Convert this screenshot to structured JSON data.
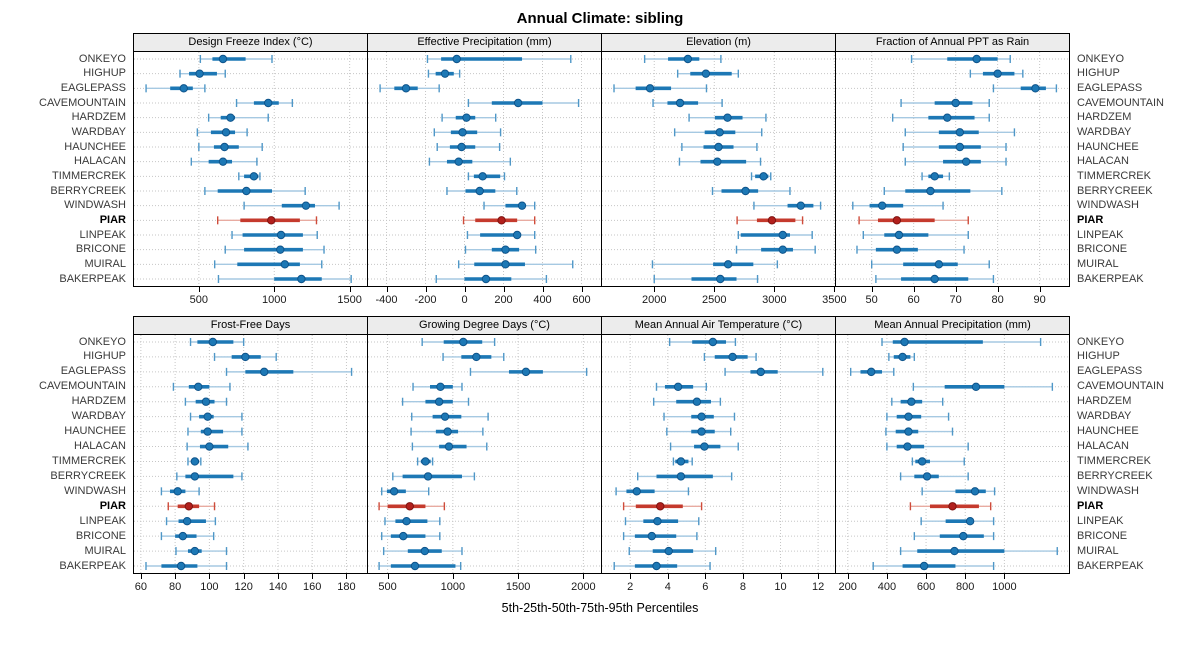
{
  "title": "Annual Climate: sibling",
  "caption": "5th-25th-50th-75th-95th Percentiles",
  "highlight_site": "PIAR",
  "sites": [
    "ONKEYO",
    "HIGHUP",
    "EAGLEPASS",
    "CAVEMOUNTAIN",
    "HARDZEM",
    "WARDBAY",
    "HAUNCHEE",
    "HALACAN",
    "TIMMERCREK",
    "BERRYCREEK",
    "WINDWASH",
    "PIAR",
    "LINPEAK",
    "BRICONE",
    "MUIRAL",
    "BAKERPEAK"
  ],
  "colors": {
    "normal": {
      "whisker": "#a6c9e2",
      "cap": "#4f97c7",
      "bar": "#1d78b5",
      "dot": "#1d78b5",
      "dot_edge": "#0e538a"
    },
    "highlight": {
      "whisker": "#e8aba1",
      "cap": "#cf4c3b",
      "bar": "#c53a2d",
      "dot": "#b2201d",
      "dot_edge": "#7e1310"
    },
    "grid": "#c6c6c6",
    "strip_bg": "#ececec",
    "border": "#000000"
  },
  "chart_data": {
    "type": "dotplot",
    "note": "5th-25th-50th-75th-95th percentile whisker plots per site; one panel per climate variable",
    "percentiles": [
      5,
      25,
      50,
      75,
      95
    ],
    "panels": [
      {
        "title": "Design Freeze Index (°C)",
        "xlim": [
          70,
          1615
        ],
        "ticks": [
          500,
          1000,
          1500
        ],
        "values": [
          [
            510,
            590,
            660,
            810,
            985
          ],
          [
            375,
            435,
            505,
            620,
            675
          ],
          [
            150,
            310,
            400,
            460,
            540
          ],
          [
            750,
            865,
            960,
            1030,
            1120
          ],
          [
            565,
            645,
            710,
            740,
            960
          ],
          [
            490,
            580,
            680,
            740,
            820
          ],
          [
            500,
            600,
            670,
            765,
            920
          ],
          [
            450,
            565,
            660,
            720,
            885
          ],
          [
            765,
            800,
            865,
            895,
            905
          ],
          [
            540,
            625,
            815,
            985,
            1205
          ],
          [
            800,
            1050,
            1210,
            1270,
            1430
          ],
          [
            625,
            775,
            980,
            1170,
            1280
          ],
          [
            720,
            790,
            1045,
            1190,
            1285
          ],
          [
            675,
            800,
            1040,
            1190,
            1330
          ],
          [
            605,
            755,
            1070,
            1170,
            1315
          ],
          [
            630,
            1000,
            1180,
            1315,
            1510
          ]
        ]
      },
      {
        "title": "Effective Precipitation (mm)",
        "xlim": [
          -495,
          700
        ],
        "ticks": [
          -400,
          -200,
          0,
          200,
          400,
          600
        ],
        "values": [
          [
            -190,
            -120,
            -40,
            295,
            545
          ],
          [
            -185,
            -148,
            -100,
            -55,
            -25
          ],
          [
            -433,
            -360,
            -300,
            -240,
            -130
          ],
          [
            20,
            140,
            275,
            400,
            585
          ],
          [
            -115,
            -45,
            10,
            55,
            160
          ],
          [
            -155,
            -70,
            -10,
            65,
            185
          ],
          [
            -140,
            -75,
            -15,
            55,
            180
          ],
          [
            -180,
            -90,
            -30,
            40,
            235
          ],
          [
            20,
            48,
            93,
            183,
            205
          ],
          [
            -90,
            5,
            78,
            158,
            268
          ],
          [
            100,
            210,
            295,
            310,
            360
          ],
          [
            -5,
            55,
            190,
            270,
            360
          ],
          [
            15,
            80,
            270,
            285,
            360
          ],
          [
            5,
            140,
            210,
            280,
            365
          ],
          [
            -30,
            50,
            210,
            310,
            555
          ],
          [
            -145,
            0,
            110,
            240,
            420
          ]
        ]
      },
      {
        "title": "Elevation (m)",
        "xlim": [
          1565,
          3505
        ],
        "ticks": [
          2000,
          2500,
          3000,
          3500
        ],
        "values": [
          [
            1920,
            2115,
            2280,
            2375,
            2555
          ],
          [
            2195,
            2300,
            2430,
            2645,
            2700
          ],
          [
            1665,
            1845,
            1965,
            2140,
            2435
          ],
          [
            1990,
            2110,
            2215,
            2365,
            2565
          ],
          [
            2290,
            2505,
            2610,
            2735,
            2930
          ],
          [
            2170,
            2420,
            2545,
            2675,
            2895
          ],
          [
            2230,
            2410,
            2535,
            2660,
            2855
          ],
          [
            2210,
            2385,
            2525,
            2765,
            2885
          ],
          [
            2810,
            2840,
            2910,
            2950,
            2970
          ],
          [
            2485,
            2560,
            2760,
            2865,
            3130
          ],
          [
            2830,
            3110,
            3220,
            3325,
            3385
          ],
          [
            2690,
            2855,
            2980,
            3175,
            3235
          ],
          [
            2700,
            2720,
            3070,
            3130,
            3315
          ],
          [
            2685,
            2890,
            3070,
            3155,
            3340
          ],
          [
            1985,
            2490,
            2615,
            2825,
            3025
          ],
          [
            2000,
            2310,
            2550,
            2685,
            2860
          ]
        ]
      },
      {
        "title": "Fraction of Annual PPT as Rain",
        "xlim": [
          41.5,
          97
        ],
        "ticks": [
          50,
          60,
          70,
          80,
          90
        ],
        "values": [
          [
            59.5,
            68,
            75,
            80,
            83
          ],
          [
            73.5,
            76.5,
            80,
            84,
            86
          ],
          [
            79,
            85.5,
            89,
            91.5,
            94
          ],
          [
            57,
            65,
            70,
            74,
            78
          ],
          [
            55,
            63.5,
            68,
            74.5,
            78
          ],
          [
            58,
            66,
            71,
            75.5,
            84
          ],
          [
            57.5,
            66,
            71,
            76,
            82
          ],
          [
            58,
            67,
            72.5,
            76,
            82
          ],
          [
            62,
            63.5,
            65,
            67,
            68.5
          ],
          [
            53,
            58,
            64,
            73.5,
            81
          ],
          [
            45.5,
            49.5,
            52.5,
            57.5,
            67
          ],
          [
            47,
            51.5,
            56,
            65,
            73
          ],
          [
            48,
            53,
            56.5,
            63.5,
            73
          ],
          [
            46.5,
            51,
            56,
            61,
            72
          ],
          [
            50,
            57.5,
            66,
            70.5,
            78
          ],
          [
            51,
            57,
            65,
            73,
            79
          ]
        ]
      },
      {
        "title": "Frost-Free Days",
        "xlim": [
          56,
          192
        ],
        "ticks": [
          60,
          80,
          100,
          120,
          140,
          160,
          180
        ],
        "values": [
          [
            89,
            93,
            102,
            114,
            120
          ],
          [
            103,
            113,
            121,
            130,
            139
          ],
          [
            110,
            121,
            132,
            149,
            183
          ],
          [
            79,
            88,
            93.5,
            100,
            112
          ],
          [
            86,
            92,
            98,
            103,
            110
          ],
          [
            89,
            94,
            99,
            102.5,
            119
          ],
          [
            87.5,
            95,
            99,
            108,
            119
          ],
          [
            87,
            94.5,
            100,
            111,
            122.5
          ],
          [
            87.5,
            90,
            91.5,
            94,
            95
          ],
          [
            81,
            86,
            91.5,
            114,
            119
          ],
          [
            72,
            77,
            81.5,
            86,
            94
          ],
          [
            76,
            81.5,
            88,
            94,
            103
          ],
          [
            75,
            82,
            87,
            98,
            103.5
          ],
          [
            72,
            80,
            84.5,
            92.5,
            102.5
          ],
          [
            80.5,
            87.5,
            91.5,
            95.5,
            110
          ],
          [
            63,
            72,
            83.5,
            93,
            110
          ]
        ]
      },
      {
        "title": "Growing Degree Days (°C)",
        "xlim": [
          350,
          2135
        ],
        "ticks": [
          500,
          1000,
          1500,
          2000
        ],
        "values": [
          [
            765,
            930,
            1080,
            1225,
            1320
          ],
          [
            925,
            1065,
            1180,
            1295,
            1390
          ],
          [
            1135,
            1430,
            1560,
            1690,
            2025
          ],
          [
            695,
            825,
            905,
            1000,
            1070
          ],
          [
            615,
            790,
            895,
            1000,
            1120
          ],
          [
            685,
            845,
            940,
            1065,
            1270
          ],
          [
            680,
            870,
            960,
            1040,
            1230
          ],
          [
            690,
            895,
            970,
            1105,
            1260
          ],
          [
            730,
            755,
            790,
            830,
            845
          ],
          [
            540,
            615,
            810,
            1070,
            1165
          ],
          [
            455,
            495,
            550,
            640,
            815
          ],
          [
            435,
            500,
            670,
            790,
            935
          ],
          [
            480,
            560,
            645,
            805,
            900
          ],
          [
            455,
            525,
            620,
            790,
            900
          ],
          [
            470,
            655,
            785,
            915,
            1070
          ],
          [
            435,
            525,
            710,
            1020,
            1060
          ]
        ]
      },
      {
        "title": "Mean Annual Air Temperature (°C)",
        "xlim": [
          0.5,
          12.9
        ],
        "ticks": [
          2,
          4,
          6,
          8,
          10,
          12
        ],
        "values": [
          [
            4.1,
            5.3,
            6.4,
            7.1,
            7.6
          ],
          [
            5.95,
            6.5,
            7.45,
            8.25,
            8.7
          ],
          [
            7.05,
            8.4,
            8.95,
            9.85,
            12.25
          ],
          [
            3.4,
            3.85,
            4.55,
            5.35,
            6.05
          ],
          [
            3.25,
            4.45,
            5.55,
            6.3,
            6.8
          ],
          [
            3.8,
            5.25,
            5.8,
            6.45,
            7.55
          ],
          [
            3.95,
            5.25,
            5.8,
            6.5,
            7.35
          ],
          [
            4.15,
            5.4,
            5.95,
            6.8,
            7.75
          ],
          [
            4.3,
            4.4,
            4.7,
            5.1,
            5.3
          ],
          [
            2.4,
            3.4,
            4.7,
            6.4,
            7.4
          ],
          [
            1.25,
            1.8,
            2.35,
            3.3,
            5.1
          ],
          [
            1.65,
            2.3,
            3.6,
            4.8,
            5.8
          ],
          [
            1.75,
            2.7,
            3.45,
            4.55,
            5.65
          ],
          [
            1.65,
            2.25,
            3.15,
            4.45,
            5.55
          ],
          [
            1.95,
            3.2,
            4.05,
            5.35,
            6.55
          ],
          [
            1.15,
            2.25,
            3.4,
            4.5,
            6.25
          ]
        ]
      },
      {
        "title": "Mean Annual Precipitation (mm)",
        "xlim": [
          140,
          1330
        ],
        "ticks": [
          200,
          400,
          600,
          800,
          1000
        ],
        "values": [
          [
            375,
            430,
            490,
            890,
            1185
          ],
          [
            410,
            435,
            480,
            520,
            540
          ],
          [
            215,
            265,
            320,
            375,
            435
          ],
          [
            535,
            695,
            855,
            1000,
            1245
          ],
          [
            425,
            470,
            525,
            580,
            685
          ],
          [
            400,
            450,
            510,
            575,
            715
          ],
          [
            395,
            445,
            510,
            560,
            735
          ],
          [
            400,
            450,
            505,
            590,
            815
          ],
          [
            530,
            545,
            580,
            620,
            795
          ],
          [
            470,
            540,
            605,
            665,
            815
          ],
          [
            580,
            750,
            850,
            905,
            950
          ],
          [
            520,
            620,
            735,
            870,
            930
          ],
          [
            575,
            700,
            825,
            840,
            945
          ],
          [
            540,
            670,
            790,
            895,
            945
          ],
          [
            470,
            555,
            745,
            1000,
            1270
          ],
          [
            330,
            480,
            590,
            750,
            945
          ]
        ]
      }
    ]
  }
}
